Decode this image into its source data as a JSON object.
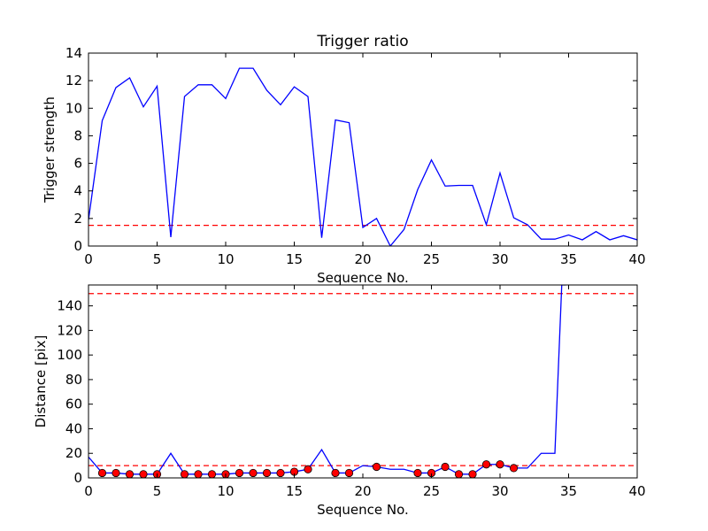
{
  "chart_data": [
    {
      "type": "line",
      "title": "Trigger ratio",
      "xlabel": "Sequence No.",
      "ylabel": "Trigger strength",
      "xlim": [
        0,
        40
      ],
      "ylim": [
        0,
        14
      ],
      "xticks": [
        0,
        5,
        10,
        15,
        20,
        25,
        30,
        35,
        40
      ],
      "yticks": [
        0,
        2,
        4,
        6,
        8,
        10,
        12,
        14
      ],
      "grid": false,
      "series": [
        {
          "style": "line",
          "color": "#0000ff",
          "x": [
            0,
            1,
            2,
            3,
            4,
            5,
            6,
            7,
            8,
            9,
            10,
            11,
            12,
            13,
            14,
            15,
            16,
            17,
            18,
            19,
            20,
            21,
            22,
            23,
            24,
            25,
            26,
            27,
            28,
            29,
            30,
            31,
            32,
            33,
            34,
            35,
            36,
            37,
            38,
            39,
            40
          ],
          "y": [
            1.9,
            9.1,
            11.5,
            12.2,
            10.1,
            11.6,
            0.65,
            10.85,
            11.7,
            11.7,
            10.7,
            12.9,
            12.9,
            11.3,
            10.25,
            11.55,
            10.85,
            0.6,
            9.15,
            8.95,
            1.35,
            2.0,
            0.0,
            1.2,
            4.1,
            6.25,
            4.35,
            4.4,
            4.4,
            1.55,
            5.3,
            2.05,
            1.55,
            0.5,
            0.5,
            0.8,
            0.45,
            1.05,
            0.45,
            0.75,
            0.45
          ]
        }
      ],
      "reference_lines": [
        {
          "orientation": "horizontal",
          "y": 1.5,
          "color": "#ff0000",
          "style": "dashed"
        }
      ]
    },
    {
      "type": "line",
      "title": "",
      "xlabel": "Sequence No.",
      "ylabel": "Distance [pix]",
      "xlim": [
        0,
        40
      ],
      "ylim": [
        0,
        157
      ],
      "xticks": [
        0,
        5,
        10,
        15,
        20,
        25,
        30,
        35,
        40
      ],
      "yticks": [
        0,
        20,
        40,
        60,
        80,
        100,
        120,
        140
      ],
      "grid": false,
      "series": [
        {
          "style": "line",
          "color": "#0000ff",
          "x": [
            0,
            1,
            2,
            3,
            4,
            5,
            6,
            7,
            8,
            9,
            10,
            11,
            12,
            13,
            14,
            15,
            16,
            17,
            18,
            19,
            20,
            21,
            22,
            23,
            24,
            25,
            26,
            27,
            28,
            29,
            30,
            31,
            32,
            33,
            34,
            34.5,
            34.8
          ],
          "y": [
            17,
            4,
            4,
            3,
            3,
            3,
            20,
            3,
            3,
            3,
            3,
            4,
            4,
            4,
            4,
            5,
            7,
            23,
            4,
            4,
            10,
            9,
            7,
            7,
            4,
            4,
            9,
            3,
            3,
            11,
            11,
            8,
            8,
            20,
            20,
            157,
            157
          ]
        },
        {
          "style": "markers",
          "color": "#ff0000",
          "x": [
            1,
            2,
            3,
            4,
            5,
            7,
            8,
            9,
            10,
            11,
            12,
            13,
            14,
            15,
            16,
            18,
            19,
            21,
            24,
            25,
            26,
            27,
            28,
            29,
            30,
            31
          ],
          "y": [
            4,
            4,
            3,
            3,
            3,
            3,
            3,
            3,
            3,
            4,
            4,
            4,
            4,
            5,
            7,
            4,
            4,
            9,
            4,
            4,
            9,
            3,
            3,
            11,
            11,
            8
          ]
        }
      ],
      "reference_lines": [
        {
          "orientation": "horizontal",
          "y": 10,
          "color": "#ff0000",
          "style": "dashed"
        },
        {
          "orientation": "horizontal",
          "y": 150,
          "color": "#ff0000",
          "style": "dashed"
        }
      ]
    }
  ]
}
